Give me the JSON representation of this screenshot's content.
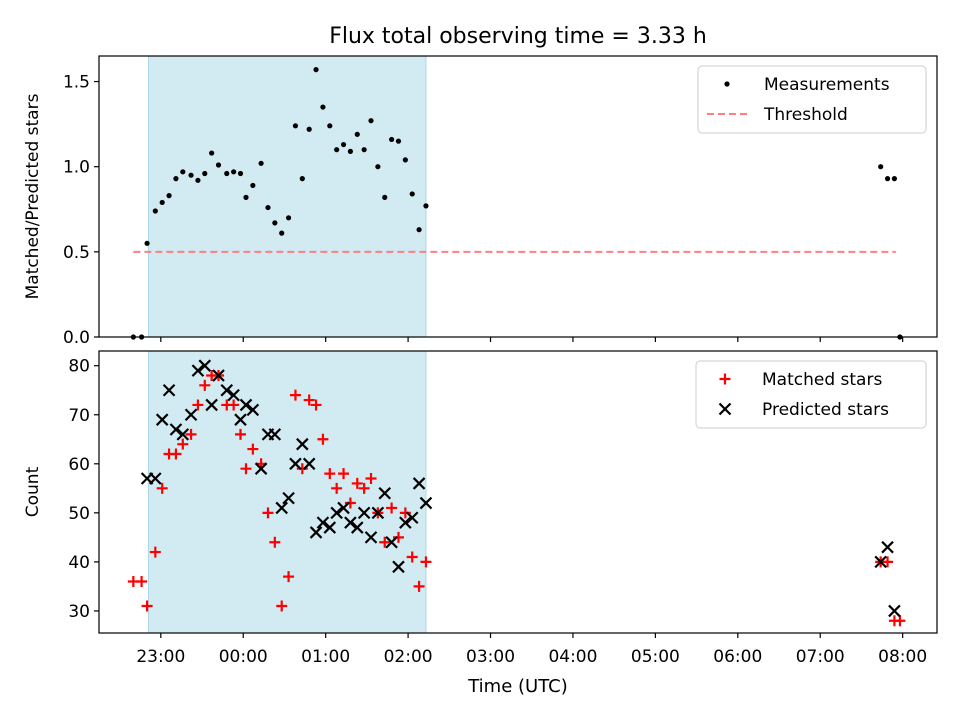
{
  "title": "Flux total observing time = 3.33 h",
  "xlabel": "Time (UTC)",
  "x_ticks": [
    "23:00",
    "00:00",
    "01:00",
    "02:00",
    "03:00",
    "04:00",
    "05:00",
    "06:00",
    "07:00",
    "08:00"
  ],
  "colors": {
    "shade": "#add8e6",
    "measurements": "#000000",
    "threshold": "#ff7f7f",
    "matched": "#ff0000",
    "predicted": "#000000"
  },
  "chart_data": [
    {
      "type": "scatter",
      "ylabel": "Matched/Predicted stars",
      "ylim": [
        0,
        1.65
      ],
      "y_ticks": [
        "0.0",
        "0.5",
        "1.0",
        "1.5"
      ],
      "y_tick_values": [
        0,
        0.5,
        1.0,
        1.5
      ],
      "xlim": [
        "22:15",
        "08:25"
      ],
      "shaded_span": [
        "22:51",
        "02:13"
      ],
      "legend": {
        "position": "top-right",
        "entries": [
          "Measurements",
          "Threshold"
        ]
      },
      "threshold": {
        "name": "Threshold",
        "value": 0.5,
        "x_range": [
          "22:40",
          "07:55"
        ]
      },
      "series": [
        {
          "name": "Measurements",
          "marker": "dot",
          "points": [
            [
              "22:40",
              0.0
            ],
            [
              "22:46",
              0.0
            ],
            [
              "22:50",
              0.55
            ],
            [
              "22:56",
              0.74
            ],
            [
              "23:01",
              0.79
            ],
            [
              "23:06",
              0.83
            ],
            [
              "23:11",
              0.93
            ],
            [
              "23:16",
              0.97
            ],
            [
              "23:22",
              0.95
            ],
            [
              "23:27",
              0.92
            ],
            [
              "23:32",
              0.96
            ],
            [
              "23:37",
              1.08
            ],
            [
              "23:42",
              1.01
            ],
            [
              "23:48",
              0.96
            ],
            [
              "23:53",
              0.97
            ],
            [
              "23:58",
              0.96
            ],
            [
              "00:02",
              0.82
            ],
            [
              "00:07",
              0.89
            ],
            [
              "00:13",
              1.02
            ],
            [
              "00:18",
              0.76
            ],
            [
              "00:23",
              0.67
            ],
            [
              "00:28",
              0.61
            ],
            [
              "00:33",
              0.7
            ],
            [
              "00:38",
              1.24
            ],
            [
              "00:43",
              0.93
            ],
            [
              "00:48",
              1.22
            ],
            [
              "00:53",
              1.57
            ],
            [
              "00:58",
              1.35
            ],
            [
              "01:03",
              1.24
            ],
            [
              "01:08",
              1.1
            ],
            [
              "01:13",
              1.13
            ],
            [
              "01:18",
              1.09
            ],
            [
              "01:23",
              1.19
            ],
            [
              "01:28",
              1.1
            ],
            [
              "01:33",
              1.27
            ],
            [
              "01:38",
              1.0
            ],
            [
              "01:43",
              0.82
            ],
            [
              "01:48",
              1.16
            ],
            [
              "01:53",
              1.15
            ],
            [
              "01:58",
              1.04
            ],
            [
              "02:03",
              0.84
            ],
            [
              "02:08",
              0.63
            ],
            [
              "02:13",
              0.77
            ],
            [
              "07:44",
              1.0
            ],
            [
              "07:49",
              0.93
            ],
            [
              "07:54",
              0.93
            ],
            [
              "07:58",
              0.0
            ]
          ]
        }
      ]
    },
    {
      "type": "scatter",
      "ylabel": "Count",
      "ylim": [
        25.5,
        83
      ],
      "y_ticks": [
        "30",
        "40",
        "50",
        "60",
        "70",
        "80"
      ],
      "y_tick_values": [
        30,
        40,
        50,
        60,
        70,
        80
      ],
      "xlim": [
        "22:15",
        "08:25"
      ],
      "shaded_span": [
        "22:51",
        "02:13"
      ],
      "legend": {
        "position": "top-right",
        "entries": [
          "Matched stars",
          "Predicted stars"
        ]
      },
      "series": [
        {
          "name": "Matched stars",
          "marker": "plus",
          "points": [
            [
              "22:40",
              36
            ],
            [
              "22:46",
              36
            ],
            [
              "22:50",
              31
            ],
            [
              "22:56",
              42
            ],
            [
              "23:01",
              55
            ],
            [
              "23:06",
              62
            ],
            [
              "23:11",
              62
            ],
            [
              "23:16",
              64
            ],
            [
              "23:22",
              66
            ],
            [
              "23:27",
              72
            ],
            [
              "23:32",
              76
            ],
            [
              "23:37",
              78
            ],
            [
              "23:42",
              78
            ],
            [
              "23:48",
              72
            ],
            [
              "23:53",
              72
            ],
            [
              "23:58",
              66
            ],
            [
              "00:02",
              59
            ],
            [
              "00:07",
              63
            ],
            [
              "00:13",
              60
            ],
            [
              "00:18",
              50
            ],
            [
              "00:23",
              44
            ],
            [
              "00:28",
              31
            ],
            [
              "00:33",
              37
            ],
            [
              "00:38",
              74
            ],
            [
              "00:43",
              59
            ],
            [
              "00:48",
              73
            ],
            [
              "00:53",
              72
            ],
            [
              "00:58",
              65
            ],
            [
              "01:03",
              58
            ],
            [
              "01:08",
              55
            ],
            [
              "01:13",
              58
            ],
            [
              "01:18",
              52
            ],
            [
              "01:23",
              56
            ],
            [
              "01:28",
              55
            ],
            [
              "01:33",
              57
            ],
            [
              "01:38",
              50
            ],
            [
              "01:43",
              44
            ],
            [
              "01:48",
              51
            ],
            [
              "01:53",
              45
            ],
            [
              "01:58",
              50
            ],
            [
              "02:03",
              41
            ],
            [
              "02:08",
              35
            ],
            [
              "02:13",
              40
            ],
            [
              "07:44",
              40
            ],
            [
              "07:49",
              40
            ],
            [
              "07:54",
              28
            ],
            [
              "07:58",
              28
            ]
          ]
        },
        {
          "name": "Predicted stars",
          "marker": "x",
          "points": [
            [
              "22:50",
              57
            ],
            [
              "22:56",
              57
            ],
            [
              "23:01",
              69
            ],
            [
              "23:06",
              75
            ],
            [
              "23:11",
              67
            ],
            [
              "23:16",
              66
            ],
            [
              "23:22",
              70
            ],
            [
              "23:27",
              79
            ],
            [
              "23:32",
              80
            ],
            [
              "23:37",
              72
            ],
            [
              "23:42",
              78
            ],
            [
              "23:48",
              75
            ],
            [
              "23:53",
              74
            ],
            [
              "23:58",
              69
            ],
            [
              "00:02",
              72
            ],
            [
              "00:07",
              71
            ],
            [
              "00:13",
              59
            ],
            [
              "00:18",
              66
            ],
            [
              "00:23",
              66
            ],
            [
              "00:28",
              51
            ],
            [
              "00:33",
              53
            ],
            [
              "00:38",
              60
            ],
            [
              "00:43",
              64
            ],
            [
              "00:48",
              60
            ],
            [
              "00:53",
              46
            ],
            [
              "00:58",
              48
            ],
            [
              "01:03",
              47
            ],
            [
              "01:08",
              50
            ],
            [
              "01:13",
              51
            ],
            [
              "01:18",
              48
            ],
            [
              "01:23",
              47
            ],
            [
              "01:28",
              50
            ],
            [
              "01:33",
              45
            ],
            [
              "01:38",
              50
            ],
            [
              "01:43",
              54
            ],
            [
              "01:48",
              44
            ],
            [
              "01:53",
              39
            ],
            [
              "01:58",
              48
            ],
            [
              "02:03",
              49
            ],
            [
              "02:08",
              56
            ],
            [
              "02:13",
              52
            ],
            [
              "07:44",
              40
            ],
            [
              "07:49",
              43
            ],
            [
              "07:54",
              30
            ]
          ]
        }
      ]
    }
  ]
}
